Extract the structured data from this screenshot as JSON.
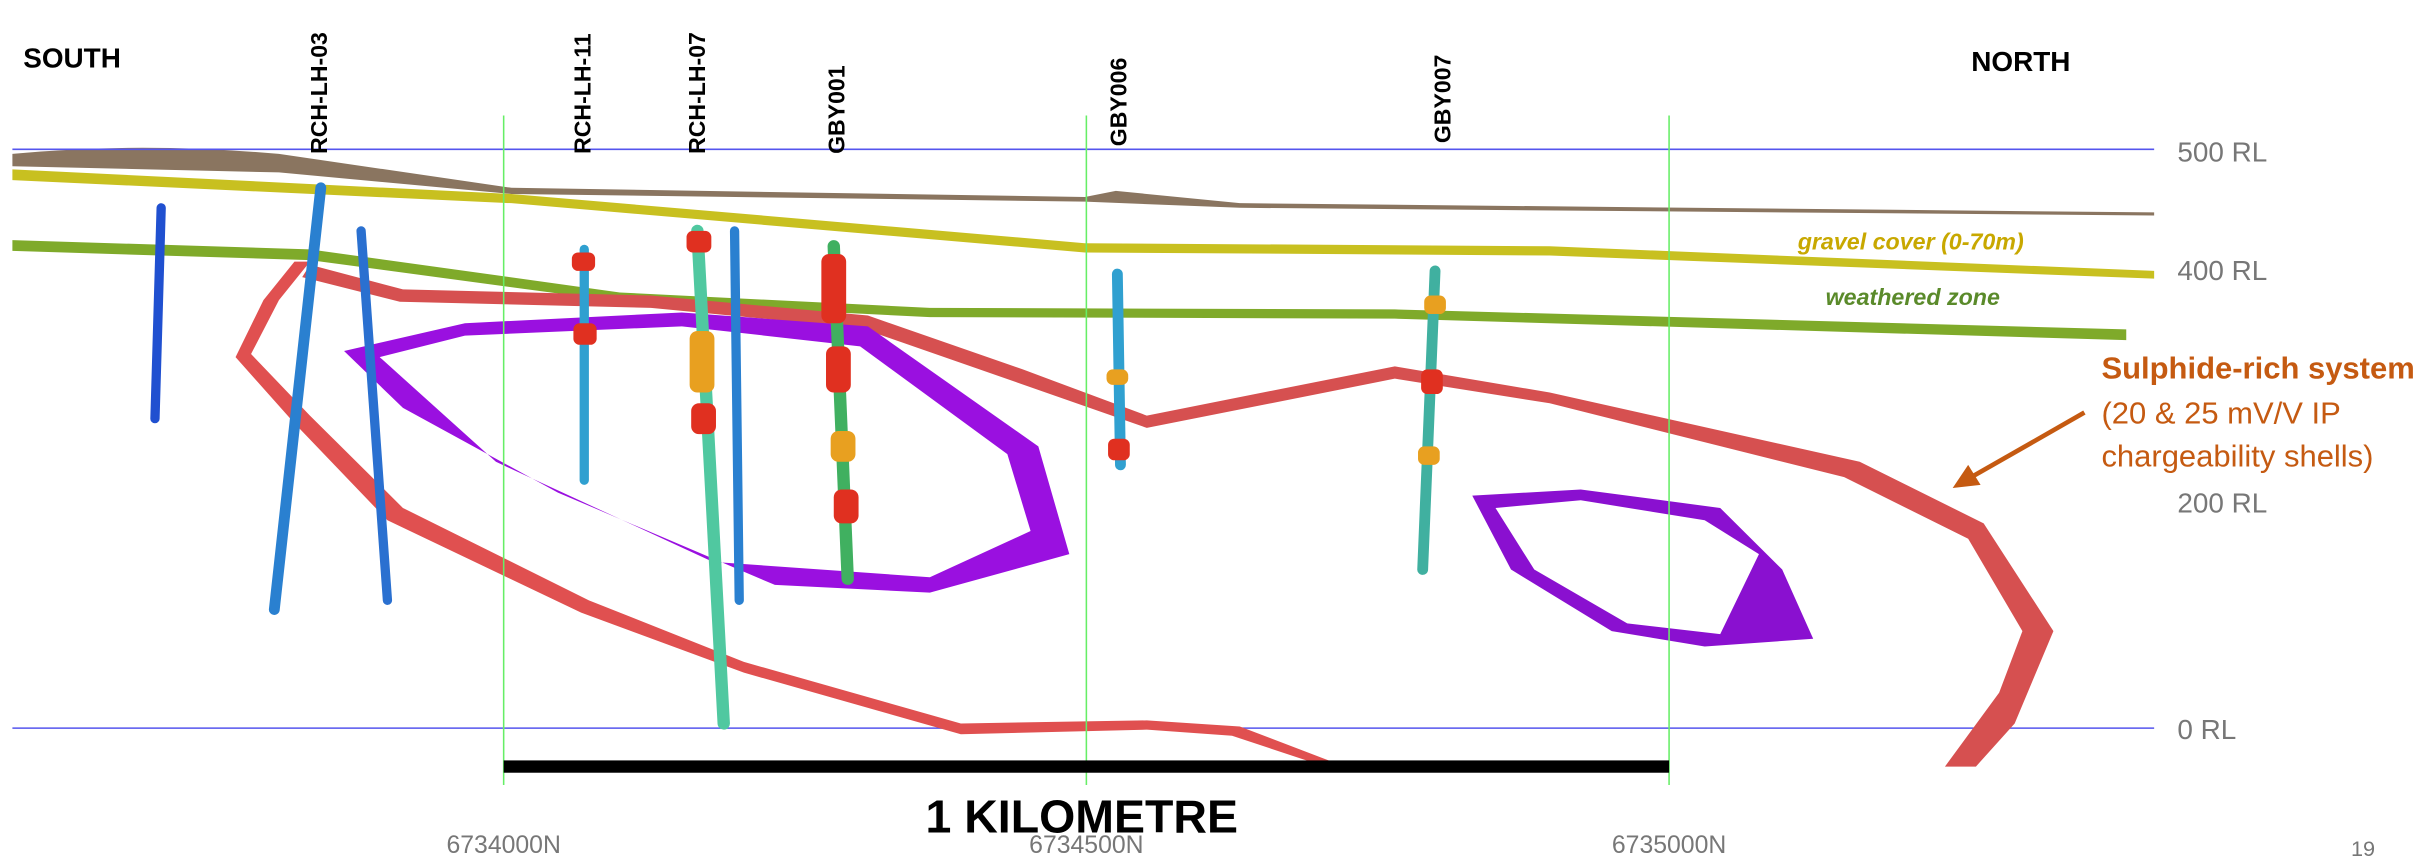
{
  "labels": {
    "south": "SOUTH",
    "north": "NORTH"
  },
  "drill_holes": [
    "RCH-LH-03",
    "RCH-LH-11",
    "RCH-LH-07",
    "GBY001",
    "GBY006",
    "GBY007"
  ],
  "rl_labels": [
    "500 RL",
    "400 RL",
    "200 RL",
    "0 RL"
  ],
  "layers": {
    "gravel": "gravel cover (0-70m)",
    "weathered": "weathered zone"
  },
  "callout": {
    "title": "Sulphide-rich system",
    "line1": "(20 & 25 mV/V IP",
    "line2": "chargeability shells)"
  },
  "scale_bar": "1 KILOMETRE",
  "northings": [
    "6734000N",
    "6734500N",
    "6735000N"
  ],
  "page_number": "19"
}
